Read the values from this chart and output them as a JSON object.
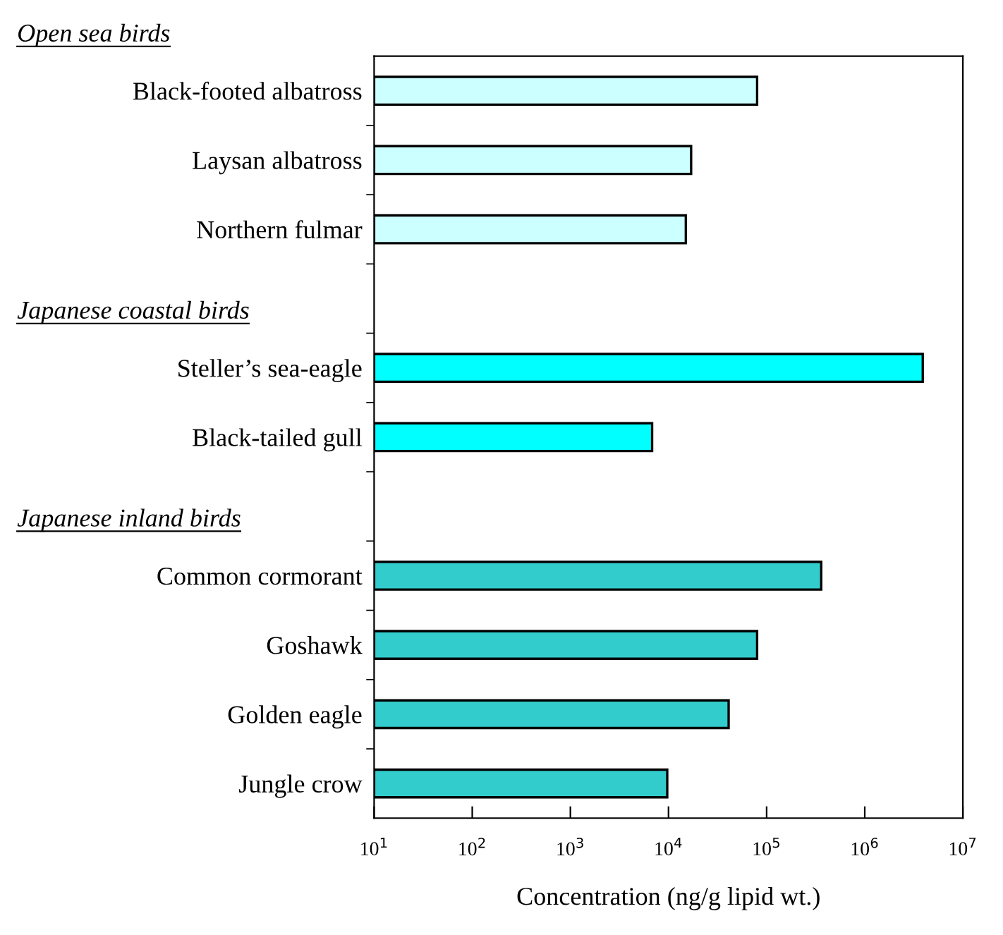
{
  "chart_data": {
    "type": "bar",
    "orientation": "horizontal",
    "log": "x",
    "categories": [
      "Black-footed albatross",
      "Laysan albatross",
      "Northern fulmar",
      null,
      "Steller’s sea-eagle",
      "Black-tailed gull",
      null,
      "Common cormorant",
      "Goshawk",
      "Golden eagle",
      "Jungle crow"
    ],
    "values": [
      80000,
      17000,
      15000,
      null,
      3900000,
      6800,
      null,
      360000,
      80000,
      41000,
      9700
    ],
    "colors": [
      "#ccffff",
      "#ccffff",
      "#ccffff",
      null,
      "#00ffff",
      "#00ffff",
      null,
      "#33cccc",
      "#33cccc",
      "#33cccc",
      "#33cccc"
    ],
    "xlabel": "Concentration (ng/g lipid wt.)",
    "xlim": [
      10,
      10000000
    ],
    "xticks": [
      {
        "value": 10,
        "label": "10$^{1}$"
      },
      {
        "value": 100,
        "label": "10$^{2}$"
      },
      {
        "value": 1000,
        "label": "10$^{3}$"
      },
      {
        "value": 10000,
        "label": "10$^{4}$"
      },
      {
        "value": 100000,
        "label": "10$^{5}$"
      },
      {
        "value": 1000000,
        "label": "10$^{6}$"
      },
      {
        "value": 10000000,
        "label": "10$^{7}$"
      }
    ],
    "annotations": [
      "Open sea birds",
      "Japanese coastal birds",
      "Japanese inland birds"
    ],
    "grid": false,
    "legend": false
  }
}
